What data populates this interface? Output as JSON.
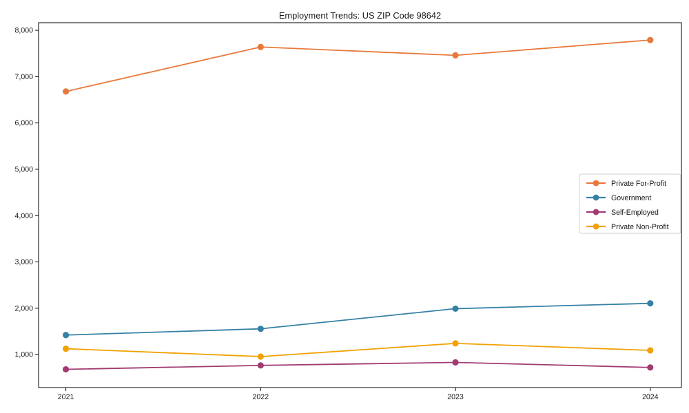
{
  "chart_data": {
    "type": "line",
    "title": "Employment Trends: US ZIP Code 98642",
    "xlabel": "",
    "ylabel": "",
    "x": [
      2021,
      2022,
      2023,
      2024
    ],
    "x_tick_labels": [
      "2021",
      "2022",
      "2023",
      "2024"
    ],
    "series": [
      {
        "name": "Private For-Profit",
        "color": "#E8793C",
        "values": [
          6680,
          7640,
          7460,
          7790
        ]
      },
      {
        "name": "Government",
        "color": "#3581A5",
        "values": [
          1420,
          1555,
          1990,
          2105
        ]
      },
      {
        "name": "Self-Employed",
        "color": "#A23B72",
        "values": [
          680,
          765,
          830,
          720
        ]
      },
      {
        "name": "Private Non-Profit",
        "color": "#F2A104",
        "values": [
          1125,
          955,
          1240,
          1090
        ]
      }
    ],
    "yticks": [
      1000,
      2000,
      3000,
      4000,
      5000,
      6000,
      7000,
      8000
    ],
    "ytick_labels": [
      "1,000",
      "2,000",
      "3,000",
      "4,000",
      "5,000",
      "6,000",
      "7,000",
      "8,000"
    ],
    "xlim": [
      2020.86,
      2024.16
    ],
    "ylim": [
      287,
      8164
    ],
    "grid": false,
    "marker": "circle",
    "legend_position": "center-right",
    "axis_color": "#000000",
    "text_color": "#1a1a1a",
    "legend_border_color": "#cccccc",
    "background_color": "#ffffff"
  }
}
